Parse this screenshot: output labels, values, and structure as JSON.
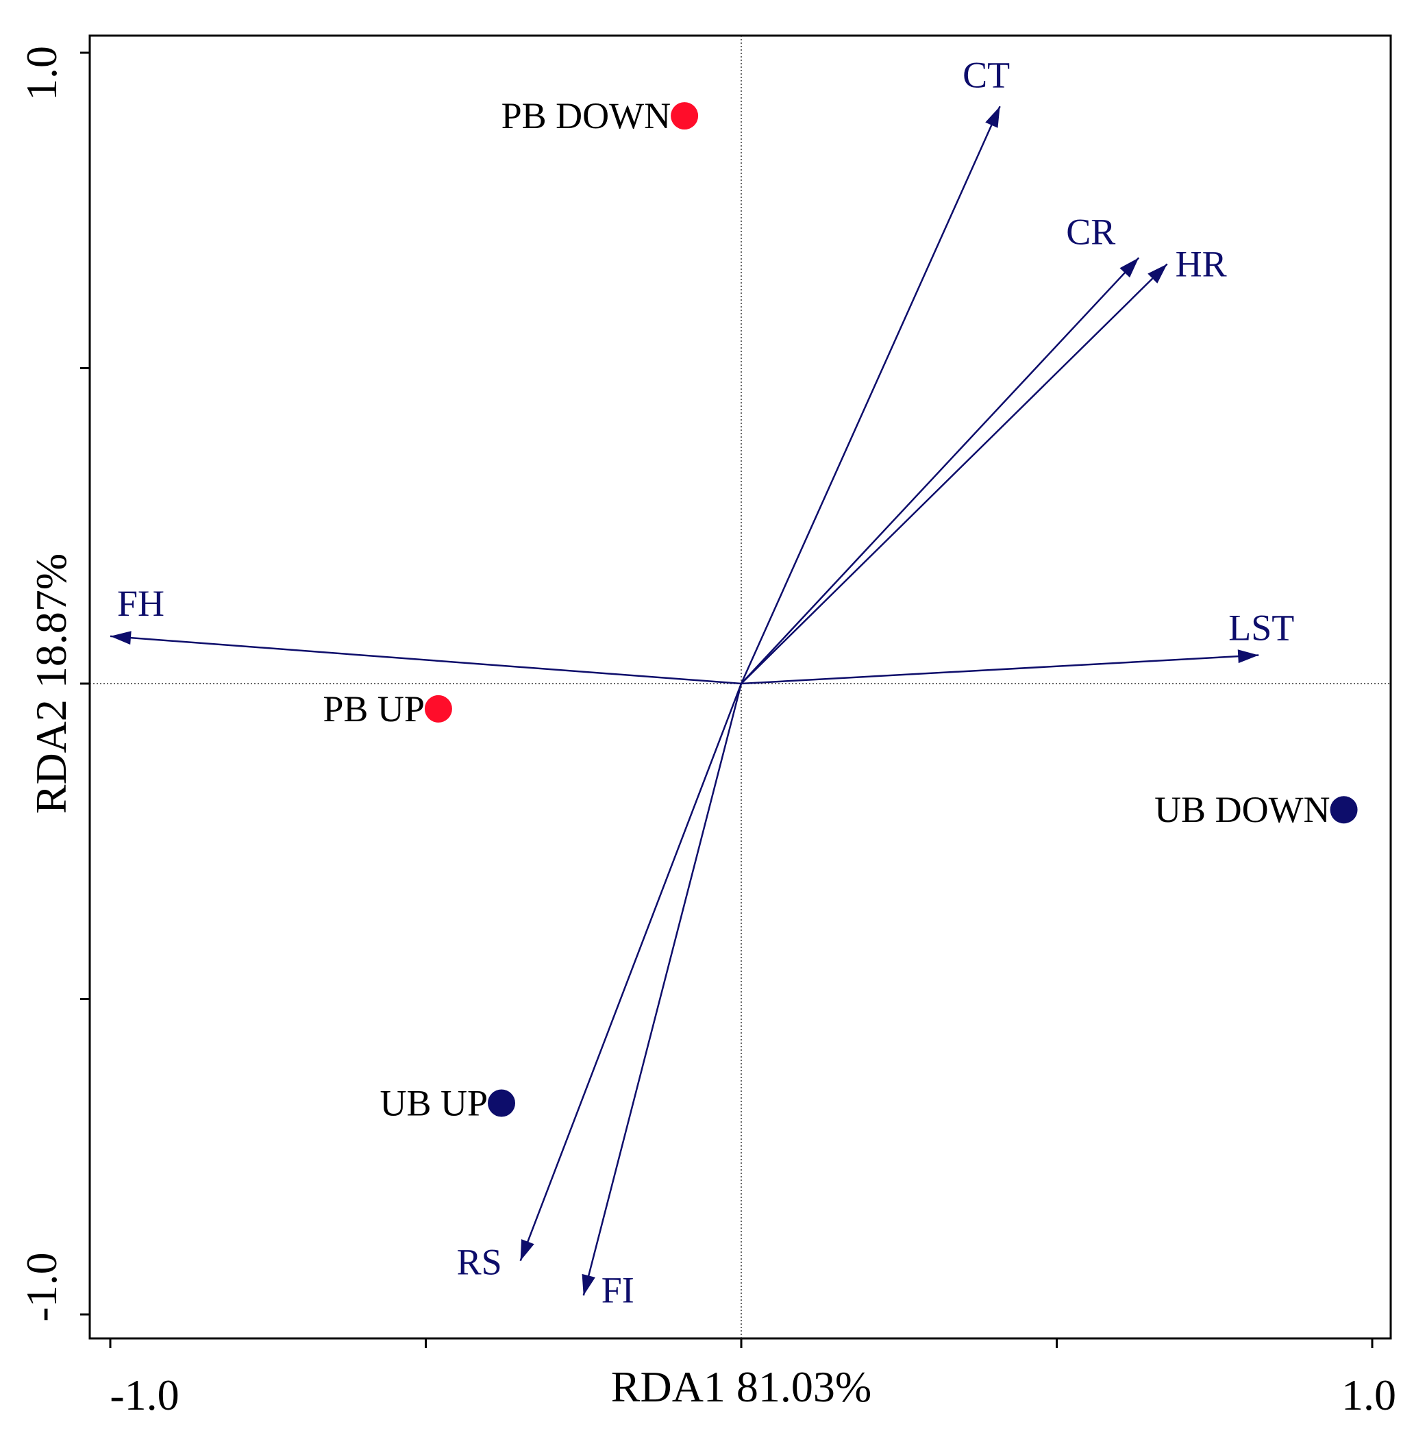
{
  "chart_data": {
    "type": "scatter",
    "subtype": "rda-biplot",
    "title": "",
    "xlabel": "RDA1 81.03%",
    "ylabel": "RDA2 18.87%",
    "xlim": [
      -1.0,
      1.0
    ],
    "ylim": [
      -1.0,
      1.0
    ],
    "x_tick_labels": [
      "-1.0",
      "1.0"
    ],
    "y_tick_labels": [
      "1.0",
      "-1.0"
    ],
    "grid": false,
    "reference_lines": "dotted lines at x = 0 and y = 0",
    "sites": [
      {
        "label": "PB DOWN",
        "x": -0.09,
        "y": 0.9,
        "group": "PB",
        "color": "#ff0d2a"
      },
      {
        "label": "PB UP",
        "x": -0.48,
        "y": -0.04,
        "group": "PB",
        "color": "#ff0d2a"
      },
      {
        "label": "UB DOWN",
        "x": 0.955,
        "y": -0.2,
        "group": "UB",
        "color": "#0d0d6b"
      },
      {
        "label": "UB UP",
        "x": -0.38,
        "y": -0.665,
        "group": "UB",
        "color": "#0d0d6b"
      }
    ],
    "environmental_vectors": [
      {
        "label": "CT",
        "x": 0.41,
        "y": 0.915
      },
      {
        "label": "CR",
        "x": 0.63,
        "y": 0.675
      },
      {
        "label": "HR",
        "x": 0.675,
        "y": 0.665
      },
      {
        "label": "LST",
        "x": 0.82,
        "y": 0.045
      },
      {
        "label": "FH",
        "x": -1.0,
        "y": 0.075
      },
      {
        "label": "RS",
        "x": -0.35,
        "y": -0.915
      },
      {
        "label": "FI",
        "x": -0.25,
        "y": -0.97
      }
    ],
    "vector_color": "#0d0d6b"
  }
}
